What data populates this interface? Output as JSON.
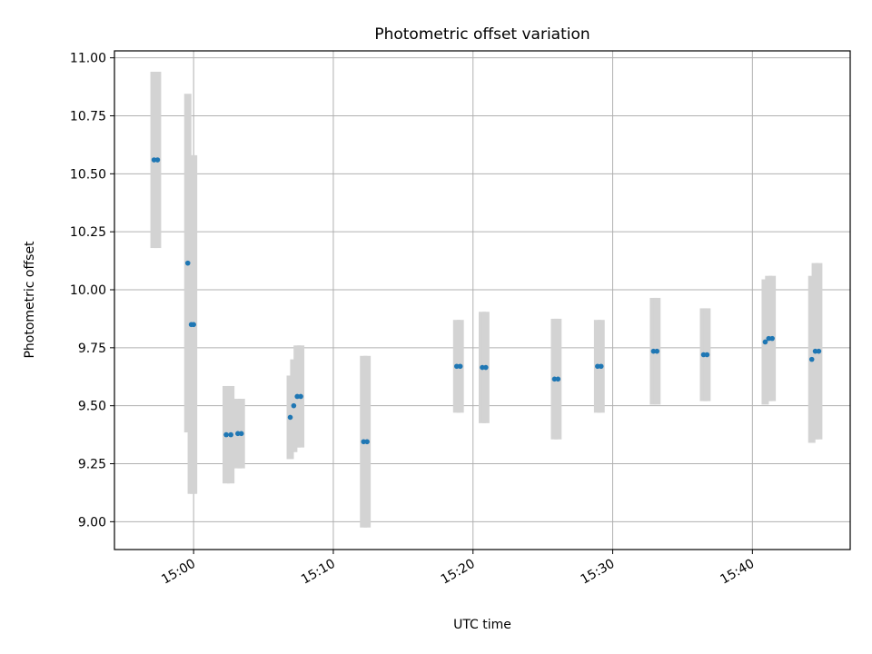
{
  "chart_data": {
    "type": "scatter",
    "title": "Photometric offset variation",
    "xlabel": "UTC time",
    "ylabel": "Photometric offset",
    "x_ticks": [
      "15:00",
      "15:10",
      "15:20",
      "15:30",
      "15:40"
    ],
    "y_ticks": [
      "9.00",
      "9.25",
      "9.50",
      "9.75",
      "10.00",
      "10.25",
      "10.50",
      "10.75",
      "11.00"
    ],
    "xlim": [
      "14:54:20",
      "15:47:00"
    ],
    "ylim": [
      8.88,
      11.03
    ],
    "grid": true,
    "colors": {
      "points": "#1f77b4",
      "error_bars": "#d3d3d3"
    },
    "series": [
      {
        "values": [
          {
            "t": "14:57:10",
            "y": 10.56,
            "err": 0.38
          },
          {
            "t": "14:57:25",
            "y": 10.56,
            "err": 0.38
          },
          {
            "t": "14:59:35",
            "y": 10.115,
            "err": 0.73
          },
          {
            "t": "14:59:50",
            "y": 9.85,
            "err": 0.73
          },
          {
            "t": "15:00:00",
            "y": 9.85,
            "err": 0.73
          },
          {
            "t": "15:02:20",
            "y": 9.375,
            "err": 0.21
          },
          {
            "t": "15:02:40",
            "y": 9.375,
            "err": 0.21
          },
          {
            "t": "15:03:10",
            "y": 9.38,
            "err": 0.15
          },
          {
            "t": "15:03:25",
            "y": 9.38,
            "err": 0.15
          },
          {
            "t": "15:06:55",
            "y": 9.45,
            "err": 0.18
          },
          {
            "t": "15:07:10",
            "y": 9.5,
            "err": 0.2
          },
          {
            "t": "15:07:25",
            "y": 9.54,
            "err": 0.22
          },
          {
            "t": "15:07:40",
            "y": 9.54,
            "err": 0.22
          },
          {
            "t": "15:12:10",
            "y": 9.345,
            "err": 0.37
          },
          {
            "t": "15:12:25",
            "y": 9.345,
            "err": 0.37
          },
          {
            "t": "15:18:50",
            "y": 9.67,
            "err": 0.2
          },
          {
            "t": "15:19:05",
            "y": 9.67,
            "err": 0.2
          },
          {
            "t": "15:20:40",
            "y": 9.665,
            "err": 0.24
          },
          {
            "t": "15:20:55",
            "y": 9.665,
            "err": 0.24
          },
          {
            "t": "15:25:50",
            "y": 9.615,
            "err": 0.26
          },
          {
            "t": "15:26:05",
            "y": 9.615,
            "err": 0.26
          },
          {
            "t": "15:28:55",
            "y": 9.67,
            "err": 0.2
          },
          {
            "t": "15:29:10",
            "y": 9.67,
            "err": 0.2
          },
          {
            "t": "15:32:55",
            "y": 9.735,
            "err": 0.23
          },
          {
            "t": "15:33:10",
            "y": 9.735,
            "err": 0.23
          },
          {
            "t": "15:36:30",
            "y": 9.72,
            "err": 0.2
          },
          {
            "t": "15:36:45",
            "y": 9.72,
            "err": 0.2
          },
          {
            "t": "15:40:55",
            "y": 9.775,
            "err": 0.27
          },
          {
            "t": "15:41:10",
            "y": 9.79,
            "err": 0.27
          },
          {
            "t": "15:41:25",
            "y": 9.79,
            "err": 0.27
          },
          {
            "t": "15:44:15",
            "y": 9.7,
            "err": 0.36
          },
          {
            "t": "15:44:30",
            "y": 9.735,
            "err": 0.38
          },
          {
            "t": "15:44:45",
            "y": 9.735,
            "err": 0.38
          }
        ]
      }
    ]
  }
}
